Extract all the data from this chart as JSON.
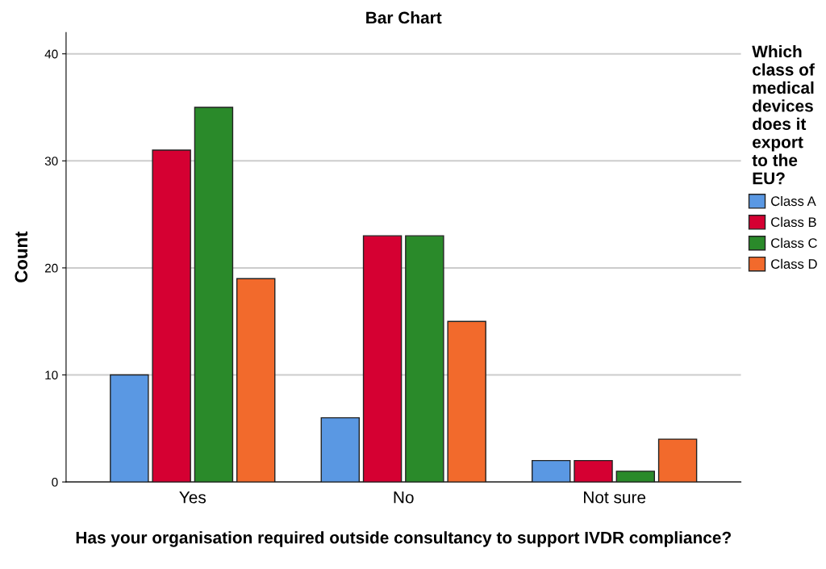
{
  "chart_data": {
    "type": "bar",
    "title": "Bar Chart",
    "xlabel": "Has your organisation required outside consultancy to support IVDR compliance?",
    "ylabel": "Count",
    "legend_title": "Which class of medical devices does it export to the EU?",
    "categories": [
      "Yes",
      "No",
      "Not sure"
    ],
    "series": [
      {
        "name": "Class A",
        "color": "#5a98e3",
        "values": [
          10,
          6,
          2
        ]
      },
      {
        "name": "Class B",
        "color": "#d50032",
        "values": [
          31,
          23,
          2
        ]
      },
      {
        "name": "Class C",
        "color": "#2a8a2a",
        "values": [
          35,
          23,
          1
        ]
      },
      {
        "name": "Class D",
        "color": "#f26a2c",
        "values": [
          19,
          15,
          4
        ]
      }
    ],
    "ylim": [
      0,
      42
    ],
    "yticks": [
      0,
      10,
      20,
      30,
      40
    ],
    "grid": "y",
    "legend": "right"
  }
}
